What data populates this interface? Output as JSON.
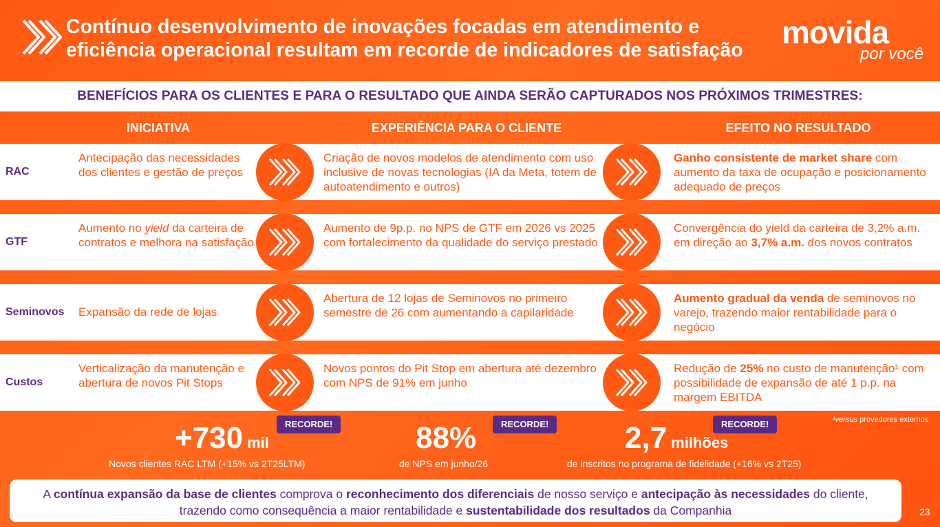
{
  "header": {
    "title": "Contínuo desenvolvimento de inovações focadas em atendimento e eficiência operacional resultam em recorde de indicadores de satisfação",
    "logo_word": "movida",
    "logo_sub": "por você"
  },
  "bar": {
    "text": "BENEFÍCIOS PARA OS CLIENTES E PARA O RESULTADO QUE AINDA SERÃO CAPTURADOS NOS PRÓXIMOS TRIMESTRES:"
  },
  "columns": {
    "initiative": "INICIATIVA",
    "experience": "EXPERIÊNCIA PARA O CLIENTE",
    "effect": "EFEITO NO RESULTADO"
  },
  "rows": [
    {
      "label": "RAC",
      "initiative": "Antecipação das necessidades dos clientes e gestão de preços",
      "experience": "Criação de novos modelos de atendimento com uso inclusive de novas tecnologias (IA da Meta, totem de autoatendimento e outros)",
      "effect_bold": "Ganho consistente de market share",
      "effect_rest": " com aumento da taxa de ocupação e posicionamento adequado de preços"
    },
    {
      "label": "GTF",
      "initiative_a": "Aumento no ",
      "initiative_em": "yield",
      "initiative_b": " da carteira de contratos e melhora na satisfação",
      "experience": "Aumento de 9p.p. no NPS de GTF em 2026 vs 2025 com fortalecimento da qualidade do serviço prestado",
      "effect_a": "Convergência do yield da carteira de 3,2% a.m. em direção ao ",
      "effect_bold": "3,7% a.m.",
      "effect_b": " dos novos contratos"
    },
    {
      "label": "Seminovos",
      "initiative": "Expansão da rede de lojas",
      "experience": "Abertura de 12 lojas de Seminovos no primeiro semestre de 26 com aumentando a capilaridade",
      "effect_bold": "Aumento gradual da venda",
      "effect_rest": " de seminovos no varejo, trazendo maior rentabilidade para o negócio"
    },
    {
      "label": "Custos",
      "initiative": "Verticalização da manutenção e abertura de novos Pit Stops",
      "experience": "Novos pontos do Pit Stop em abertura até dezembro com NPS de 91% em junho",
      "effect_a": "Redução de ",
      "effect_bold": "25%",
      "effect_b": " no custo de manutenção¹ com possibilidade de expansão de até 1 p.p. na margem EBITDA"
    }
  ],
  "records": [
    {
      "value": "+730",
      "unit": "mil",
      "badge": "RECORDE!",
      "caption": "Novos clientes RAC LTM (+15% vs 2T25LTM)"
    },
    {
      "value": "88%",
      "unit": "",
      "badge": "RECORDE!",
      "caption": "de NPS em junho/26"
    },
    {
      "value": "2,7",
      "unit": "milhões",
      "badge": "RECORDE!",
      "caption": "de inscritos no programa de fidelidade (+16% vs 2T25)"
    }
  ],
  "footnote_em": "¹versus",
  "footnote_rest": " provedores externos",
  "bottom": {
    "p1": "A ",
    "b1": "contínua expansão da base de clientes",
    "p2": " comprova o ",
    "b2": "reconhecimento dos diferenciais",
    "p3": " de nosso serviço e ",
    "b3": "antecipação às necessidades",
    "p4": " do cliente, trazendo como consequência a maior rentabilidade e ",
    "b4": "sustentabilidade dos resultados",
    "p5": " da Companhia"
  },
  "page_number": "23",
  "colors": {
    "orange": "#ff5a14",
    "purple": "#5b2a86",
    "white": "#ffffff"
  }
}
